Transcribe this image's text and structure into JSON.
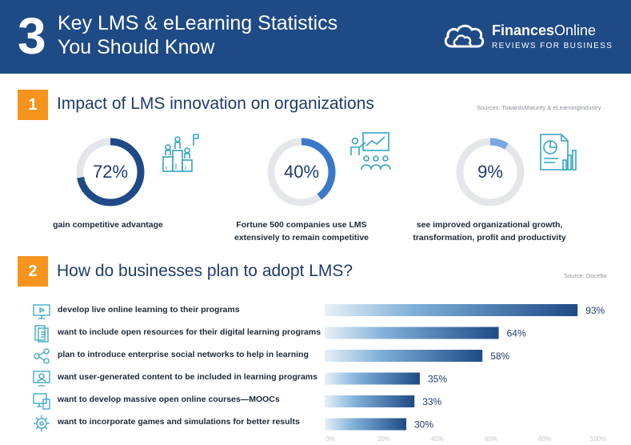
{
  "header": {
    "number": "3",
    "title_line1": "Key LMS & eLearning Statistics",
    "title_line2": "You Should Know",
    "brand_name_bold": "Finances",
    "brand_name_rest": "Online",
    "brand_tag": "REVIEWS FOR BUSINESS"
  },
  "section1": {
    "badge": "1",
    "title": "Impact of LMS innovation on organizations",
    "source": "Sources: TowardsMaturity & eLearningIndustry",
    "stats": [
      {
        "value": 72,
        "label": "72%",
        "caption1": "gain competitive advantage",
        "caption2": "",
        "icon": "podium-people-icon"
      },
      {
        "value": 40,
        "label": "40%",
        "caption1": "Fortune 500 companies use LMS",
        "caption2": "extensively to remain competitive",
        "icon": "presentation-audience-icon"
      },
      {
        "value": 9,
        "label": "9%",
        "caption1": "see improved organizational growth,",
        "caption2": "transformation, profit and productivity",
        "icon": "report-chart-icon"
      }
    ]
  },
  "section2": {
    "badge": "2",
    "title": "How do businesses plan to adopt LMS?",
    "source": "Source: Docebo"
  },
  "chart_data": {
    "type": "bar",
    "orientation": "horizontal",
    "title": "How do businesses plan to adopt LMS?",
    "categories": [
      "develop live online learning to their programs",
      "want to include open resources for their digital learning programs",
      "plan to introduce enterprise social networks to help in learning",
      "want user-generated content to be included in learning programs",
      "want to develop massive open online courses—MOOCs",
      "want to incorporate games and simulations for better results"
    ],
    "values": [
      93,
      64,
      58,
      35,
      33,
      30
    ],
    "value_labels": [
      "93%",
      "64%",
      "58%",
      "35%",
      "33%",
      "30%"
    ],
    "xlim": [
      0,
      100
    ],
    "xticks": [
      "0%",
      "20%",
      "40%",
      "60%",
      "80%",
      "100%"
    ],
    "xlabel": "",
    "ylabel": ""
  },
  "colors": {
    "header_bg": "#1e4a86",
    "accent_orange": "#f7941d",
    "donut_dark": "#1e4a86",
    "donut_mid": "#3a78c9",
    "donut_light": "#7aa6e3",
    "donut_track": "#e4e6e9",
    "bar_start": "#e8f0f7",
    "bar_end": "#1e4a86",
    "icon_teal": "#34a4c4"
  }
}
